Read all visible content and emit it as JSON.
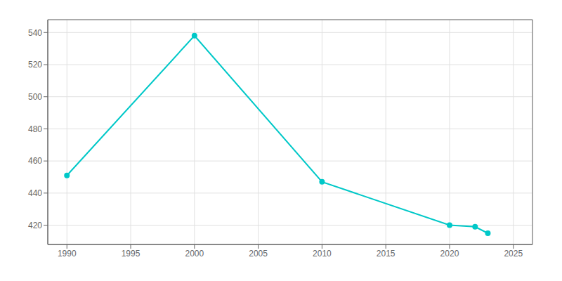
{
  "chart_data": {
    "type": "line",
    "x": [
      1990,
      2000,
      2010,
      2020,
      2022,
      2023
    ],
    "values": [
      451,
      538,
      447,
      420,
      419,
      415
    ],
    "color": "#00c8c8",
    "marker": "circle",
    "xlim": [
      1988.5,
      2026.5
    ],
    "ylim": [
      408,
      548
    ],
    "xticks": [
      1990,
      1995,
      2000,
      2005,
      2010,
      2015,
      2020,
      2025
    ],
    "yticks": [
      420,
      440,
      460,
      480,
      500,
      520,
      540
    ],
    "grid": true
  }
}
